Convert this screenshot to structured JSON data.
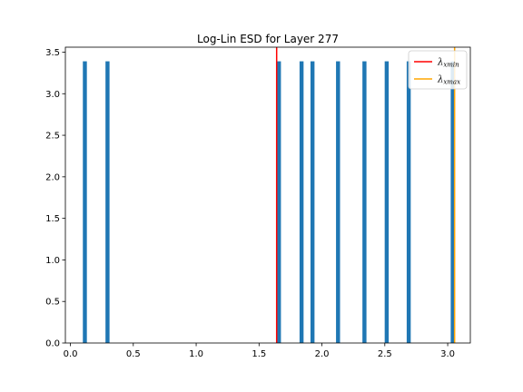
{
  "chart_data": {
    "type": "bar",
    "title": "Log-Lin ESD for Layer 277",
    "xlabel": "",
    "ylabel": "",
    "xlim": [
      -0.04,
      3.18
    ],
    "ylim": [
      0,
      3.56
    ],
    "xticks": [
      0.0,
      0.5,
      1.0,
      1.5,
      2.0,
      2.5,
      3.0
    ],
    "xtick_labels": [
      "0.0",
      "0.5",
      "1.0",
      "1.5",
      "2.0",
      "2.5",
      "3.0"
    ],
    "yticks": [
      0.0,
      0.5,
      1.0,
      1.5,
      2.0,
      2.5,
      3.0,
      3.5
    ],
    "ytick_labels": [
      "0.0",
      "0.5",
      "1.0",
      "1.5",
      "2.0",
      "2.5",
      "3.0",
      "3.5"
    ],
    "bar_width": 0.032,
    "bar_color": "#1f77b4",
    "bars": [
      {
        "x": 0.115,
        "value": 3.39
      },
      {
        "x": 0.295,
        "value": 3.39
      },
      {
        "x": 1.658,
        "value": 3.39
      },
      {
        "x": 1.838,
        "value": 3.39
      },
      {
        "x": 1.925,
        "value": 3.39
      },
      {
        "x": 2.128,
        "value": 3.39
      },
      {
        "x": 2.338,
        "value": 3.39
      },
      {
        "x": 2.515,
        "value": 3.39
      },
      {
        "x": 2.69,
        "value": 3.39
      },
      {
        "x": 3.04,
        "value": 3.39
      }
    ],
    "vlines": [
      {
        "x": 1.64,
        "color": "#ff0000",
        "label_symbol": "λ",
        "label_sub": "xmin"
      },
      {
        "x": 3.055,
        "color": "#ffa500",
        "label_symbol": "λ",
        "label_sub": "xmax"
      }
    ],
    "legend_placement": "top-right",
    "grid": false
  }
}
